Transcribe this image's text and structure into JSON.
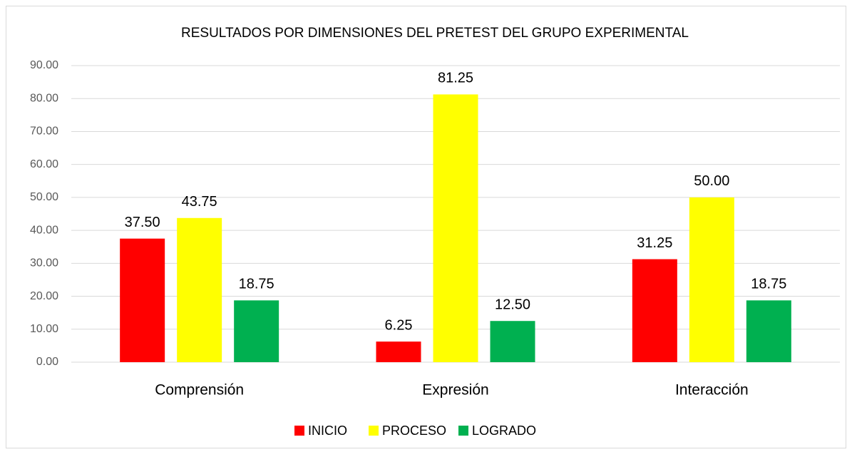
{
  "chart_data": {
    "type": "bar",
    "title": "RESULTADOS POR DIMENSIONES DEL PRETEST   DEL GRUPO EXPERIMENTAL",
    "categories": [
      "Comprensión",
      "Expresión",
      "Interacción"
    ],
    "series": [
      {
        "name": "INICIO",
        "color": "#ff0000",
        "values": [
          37.5,
          6.25,
          31.25
        ],
        "value_labels": [
          "37.50",
          "6.25",
          "31.25"
        ]
      },
      {
        "name": "PROCESO",
        "color": "#ffff00",
        "values": [
          43.75,
          81.25,
          50
        ],
        "value_labels": [
          "43.75",
          "81.25",
          "50.00"
        ]
      },
      {
        "name": "LOGRADO",
        "color": "#00b050",
        "values": [
          18.75,
          12.5,
          18.75
        ],
        "value_labels": [
          "18.75",
          "12.50",
          "18.75"
        ]
      }
    ],
    "ylim": [
      0,
      90
    ],
    "yticks": [
      {
        "value": 0,
        "label": "0.00"
      },
      {
        "value": 10,
        "label": "10.00"
      },
      {
        "value": 20,
        "label": "20.00"
      },
      {
        "value": 30,
        "label": "30.00"
      },
      {
        "value": 40,
        "label": "40.00"
      },
      {
        "value": 50,
        "label": "50.00"
      },
      {
        "value": 60,
        "label": "60.00"
      },
      {
        "value": 70,
        "label": "70.00"
      },
      {
        "value": 80,
        "label": "80.00"
      },
      {
        "value": 90,
        "label": "90.00"
      }
    ],
    "grid": true,
    "legend": "bottom"
  }
}
